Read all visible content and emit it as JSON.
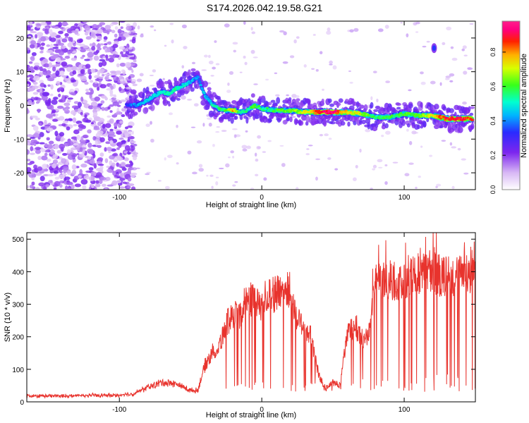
{
  "figure_title": "S174.2026.042.19.58.G21",
  "chart_data": [
    {
      "type": "heatmap",
      "xlabel": "Height of straight line (km)",
      "ylabel": "Frequency (Hz)",
      "xlim": [
        -165,
        150
      ],
      "ylim": [
        -25,
        25
      ],
      "xticks": [
        -100,
        0,
        100
      ],
      "yticks": [
        -20,
        -10,
        0,
        10,
        20
      ],
      "colorbar": {
        "label": "Normalized spectral amplitude",
        "ticks": [
          0.0,
          0.2,
          0.4,
          0.6,
          0.8
        ],
        "range": [
          0,
          0.98
        ],
        "colormap": "white-violet-blue-cyan-green-yellow-red-magenta"
      },
      "ridge": {
        "name": "Spectral ridge (Doppler trace)",
        "x": [
          -95,
          -90,
          -85,
          -80,
          -75,
          -70,
          -65,
          -60,
          -55,
          -50,
          -45,
          -40,
          -35,
          -30,
          -25,
          -20,
          -15,
          -10,
          -5,
          0,
          10,
          20,
          30,
          40,
          50,
          60,
          70,
          80,
          90,
          100,
          110,
          120,
          130,
          140,
          148
        ],
        "y": [
          0,
          0,
          0.5,
          1.5,
          3,
          4,
          3.5,
          5,
          6,
          7,
          8.5,
          3,
          0.5,
          -1,
          -1.5,
          -1.5,
          -2,
          -1.5,
          0,
          -1,
          -1.5,
          -1.5,
          -2,
          -2,
          -2,
          -2,
          -2.5,
          -3.5,
          -3.5,
          -2.5,
          -3,
          -3,
          -4,
          -4,
          -4
        ],
        "amplitude": [
          0.35,
          0.4,
          0.45,
          0.45,
          0.5,
          0.5,
          0.55,
          0.55,
          0.5,
          0.45,
          0.4,
          0.45,
          0.5,
          0.55,
          0.6,
          0.8,
          0.55,
          0.55,
          0.6,
          0.55,
          0.6,
          0.65,
          0.7,
          0.9,
          0.95,
          0.75,
          0.7,
          0.55,
          0.6,
          0.6,
          0.65,
          0.75,
          0.9,
          0.9,
          0.85
        ]
      },
      "isolated_blob": {
        "x": 121,
        "y": 17,
        "amplitude": 0.35
      },
      "noise_region_x": [
        -165,
        -95
      ]
    },
    {
      "type": "line",
      "xlabel": "Height of straight line (km)",
      "ylabel": "SNR (10 * v/v)",
      "xlim": [
        -165,
        150
      ],
      "ylim": [
        0,
        520
      ],
      "xticks": [
        -100,
        0,
        100
      ],
      "yticks": [
        0,
        100,
        200,
        300,
        400,
        500
      ],
      "color": "#e8332d",
      "series": [
        {
          "name": "SNR",
          "x": [
            -165,
            -140,
            -120,
            -100,
            -90,
            -80,
            -70,
            -60,
            -50,
            -45,
            -40,
            -35,
            -30,
            -25,
            -20,
            -15,
            -10,
            -5,
            0,
            5,
            10,
            15,
            20,
            25,
            30,
            35,
            40,
            45,
            50,
            55,
            60,
            65,
            70,
            75,
            80,
            90,
            100,
            110,
            120,
            130,
            140,
            148
          ],
          "y": [
            18,
            18,
            20,
            20,
            25,
            45,
            60,
            55,
            35,
            35,
            110,
            150,
            170,
            240,
            270,
            260,
            330,
            310,
            300,
            340,
            330,
            350,
            340,
            250,
            240,
            190,
            80,
            40,
            60,
            50,
            220,
            240,
            190,
            210,
            360,
            370,
            380,
            390,
            400,
            380,
            390,
            410
          ],
          "dropouts_min": 30
        }
      ]
    }
  ]
}
